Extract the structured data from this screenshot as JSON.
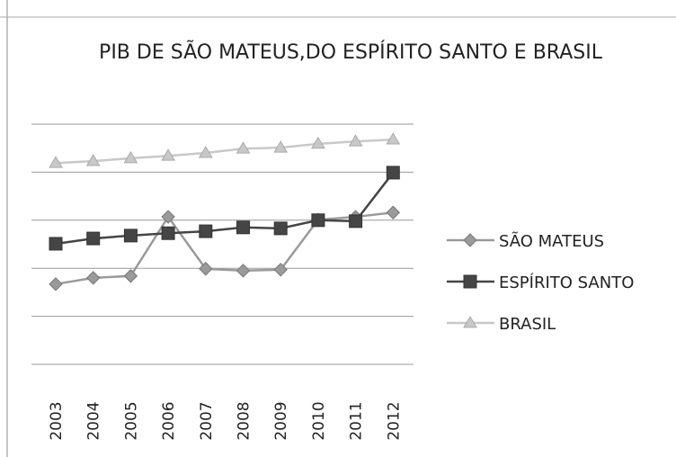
{
  "chart_data": {
    "type": "line",
    "title": "PIB DE SÃO MATEUS,DO ESPÍRITO SANTO E BRASIL",
    "categories": [
      "2003",
      "2004",
      "2005",
      "2006",
      "2007",
      "2008",
      "2009",
      "2010",
      "2011",
      "2012"
    ],
    "series": [
      {
        "name": "SÃO MATEUS",
        "color": "#9a9a9a",
        "marker": "diamond",
        "values": [
          1.67,
          1.8,
          1.84,
          3.07,
          1.99,
          1.95,
          1.97,
          3.01,
          3.07,
          3.16
        ]
      },
      {
        "name": "ESPÍRITO SANTO",
        "color": "#454545",
        "marker": "square",
        "values": [
          2.51,
          2.62,
          2.68,
          2.73,
          2.77,
          2.85,
          2.83,
          3.0,
          2.98,
          3.99
        ]
      },
      {
        "name": "BRASIL",
        "color": "#c8c8c8",
        "marker": "triangle",
        "values": [
          4.19,
          4.23,
          4.29,
          4.34,
          4.4,
          4.49,
          4.51,
          4.59,
          4.64,
          4.68
        ]
      }
    ],
    "ylim": [
      0,
      5
    ],
    "yticks": [
      0,
      1,
      2,
      3,
      4,
      5
    ],
    "grid": true,
    "legend": "right"
  }
}
